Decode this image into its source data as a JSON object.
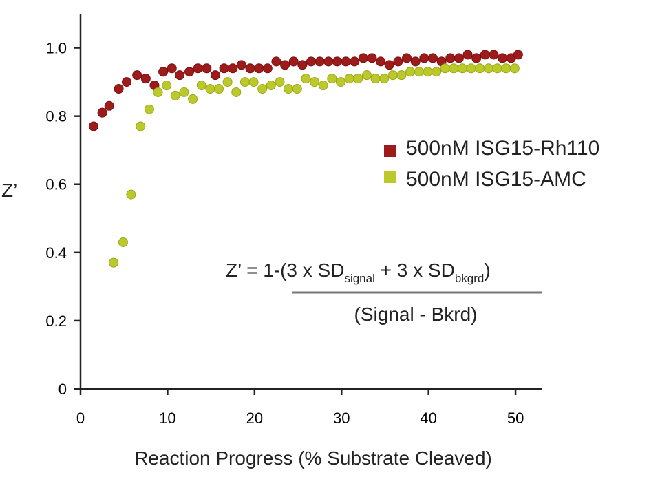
{
  "chart_data": {
    "type": "scatter",
    "title": "",
    "xlabel": "Reaction Progress (% Substrate Cleaved)",
    "ylabel": "Z’",
    "xlim": [
      0,
      53
    ],
    "ylim": [
      0,
      1.1
    ],
    "x_ticks": [
      0,
      10,
      20,
      30,
      40,
      50
    ],
    "x_tick_labels": [
      "0",
      "10",
      "20",
      "30",
      "40",
      "50"
    ],
    "y_ticks": [
      0,
      0.2,
      0.4,
      0.6,
      0.8,
      1.0
    ],
    "y_tick_labels": [
      "0",
      "0.2",
      "0.4",
      "0.6",
      "0.8",
      "1.0"
    ],
    "grid": false,
    "legend_position": "right",
    "series": [
      {
        "name": "500nM ISG15-Rh110",
        "color": "#9e1b1b",
        "points": [
          [
            1.5,
            0.77
          ],
          [
            2.5,
            0.81
          ],
          [
            3.3,
            0.83
          ],
          [
            4.4,
            0.88
          ],
          [
            5.3,
            0.9
          ],
          [
            6.5,
            0.92
          ],
          [
            7.5,
            0.91
          ],
          [
            8.5,
            0.89
          ],
          [
            9.5,
            0.93
          ],
          [
            10.5,
            0.94
          ],
          [
            11.4,
            0.92
          ],
          [
            12.5,
            0.93
          ],
          [
            13.5,
            0.94
          ],
          [
            14.5,
            0.94
          ],
          [
            15.5,
            0.92
          ],
          [
            16.5,
            0.94
          ],
          [
            17.5,
            0.94
          ],
          [
            18.5,
            0.95
          ],
          [
            19.5,
            0.94
          ],
          [
            20.5,
            0.94
          ],
          [
            21.5,
            0.94
          ],
          [
            22.5,
            0.96
          ],
          [
            23.5,
            0.95
          ],
          [
            24.5,
            0.96
          ],
          [
            25.5,
            0.95
          ],
          [
            26.5,
            0.96
          ],
          [
            27.5,
            0.96
          ],
          [
            28.5,
            0.96
          ],
          [
            29.5,
            0.96
          ],
          [
            30.5,
            0.96
          ],
          [
            31.5,
            0.96
          ],
          [
            32.5,
            0.97
          ],
          [
            33.5,
            0.97
          ],
          [
            34.5,
            0.96
          ],
          [
            35.5,
            0.95
          ],
          [
            36.5,
            0.96
          ],
          [
            37.5,
            0.97
          ],
          [
            38.5,
            0.96
          ],
          [
            39.5,
            0.97
          ],
          [
            40.5,
            0.97
          ],
          [
            41.5,
            0.96
          ],
          [
            42.5,
            0.97
          ],
          [
            43.5,
            0.97
          ],
          [
            44.5,
            0.98
          ],
          [
            45.5,
            0.97
          ],
          [
            46.5,
            0.98
          ],
          [
            47.5,
            0.98
          ],
          [
            48.5,
            0.97
          ],
          [
            49.5,
            0.97
          ],
          [
            50.3,
            0.98
          ]
        ]
      },
      {
        "name": "500nM ISG15-AMC",
        "color": "#bcc92a",
        "points": [
          [
            3.8,
            0.37
          ],
          [
            4.9,
            0.43
          ],
          [
            5.8,
            0.57
          ],
          [
            6.9,
            0.77
          ],
          [
            7.9,
            0.82
          ],
          [
            8.9,
            0.87
          ],
          [
            9.9,
            0.89
          ],
          [
            10.9,
            0.86
          ],
          [
            11.9,
            0.87
          ],
          [
            12.9,
            0.85
          ],
          [
            13.9,
            0.89
          ],
          [
            14.9,
            0.88
          ],
          [
            15.9,
            0.88
          ],
          [
            16.9,
            0.9
          ],
          [
            17.9,
            0.87
          ],
          [
            18.9,
            0.9
          ],
          [
            19.9,
            0.9
          ],
          [
            20.9,
            0.88
          ],
          [
            21.9,
            0.89
          ],
          [
            22.9,
            0.9
          ],
          [
            23.9,
            0.88
          ],
          [
            24.9,
            0.88
          ],
          [
            25.9,
            0.91
          ],
          [
            26.9,
            0.9
          ],
          [
            27.9,
            0.89
          ],
          [
            28.9,
            0.91
          ],
          [
            29.9,
            0.9
          ],
          [
            30.9,
            0.91
          ],
          [
            31.9,
            0.91
          ],
          [
            32.9,
            0.92
          ],
          [
            33.9,
            0.91
          ],
          [
            34.9,
            0.91
          ],
          [
            35.9,
            0.92
          ],
          [
            36.9,
            0.92
          ],
          [
            37.9,
            0.93
          ],
          [
            38.9,
            0.93
          ],
          [
            39.9,
            0.93
          ],
          [
            40.9,
            0.93
          ],
          [
            41.9,
            0.94
          ],
          [
            42.9,
            0.94
          ],
          [
            43.9,
            0.94
          ],
          [
            44.9,
            0.94
          ],
          [
            45.9,
            0.94
          ],
          [
            46.9,
            0.94
          ],
          [
            47.9,
            0.94
          ],
          [
            48.9,
            0.94
          ],
          [
            49.9,
            0.94
          ]
        ]
      }
    ],
    "annotation": {
      "formula_prefix": "Z’ = 1-(3 x SD",
      "sub1": "signal",
      "formula_middle": " + 3 x SD",
      "sub2": "bkgrd",
      "formula_suffix": ")",
      "denominator": "(Signal - Bkrd)"
    }
  }
}
